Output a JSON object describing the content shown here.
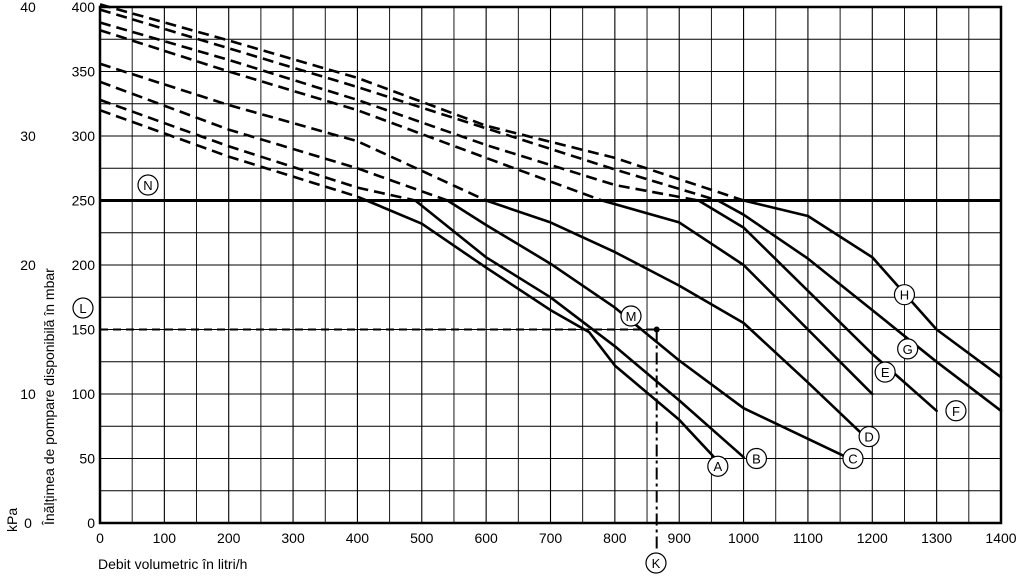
{
  "chart_data": {
    "type": "line",
    "xlabel": "Debit volumetric în litri/h",
    "ylabel": "Înălțimea de pompare disponibilă în mbar",
    "y2label": "kPa",
    "xlim": [
      0,
      1400
    ],
    "ylim": [
      0,
      400
    ],
    "y2lim": [
      0,
      40
    ],
    "x_ticks": [
      0,
      100,
      200,
      300,
      400,
      500,
      600,
      700,
      800,
      900,
      1000,
      1100,
      1200,
      1300,
      1400
    ],
    "y_ticks": [
      0,
      50,
      100,
      150,
      200,
      250,
      300,
      350,
      400
    ],
    "y2_ticks": [
      0,
      10,
      20,
      30,
      40
    ],
    "grid": true,
    "series": [
      {
        "name": "A",
        "x": [
          0,
          200,
          400,
          500,
          600,
          700,
          760,
          800,
          900,
          960
        ],
        "y": [
          320,
          284,
          253,
          232,
          198,
          165,
          148,
          122,
          80,
          48
        ]
      },
      {
        "name": "B",
        "x": [
          0,
          200,
          400,
          490,
          600,
          700,
          800,
          900,
          1000
        ],
        "y": [
          328,
          292,
          260,
          250,
          206,
          175,
          137,
          95,
          51
        ]
      },
      {
        "name": "C",
        "x": [
          0,
          200,
          400,
          540,
          600,
          700,
          800,
          900,
          1000,
          1160
        ],
        "y": [
          342,
          305,
          275,
          250,
          231,
          201,
          167,
          126,
          89,
          51
        ]
      },
      {
        "name": "D",
        "x": [
          0,
          200,
          400,
          600,
          700,
          800,
          900,
          1000,
          1100,
          1180
        ],
        "y": [
          356,
          324,
          296,
          250,
          233,
          210,
          184,
          155,
          109,
          71
        ]
      },
      {
        "name": "E",
        "x": [
          0,
          200,
          400,
          600,
          780,
          900,
          1000,
          1100,
          1200
        ],
        "y": [
          382,
          350,
          320,
          283,
          250,
          233,
          200,
          150,
          100
        ]
      },
      {
        "name": "F",
        "x": [
          0,
          200,
          400,
          600,
          800,
          930,
          1000,
          1100,
          1200,
          1300
        ],
        "y": [
          388,
          359,
          328,
          293,
          262,
          250,
          229,
          180,
          131,
          87
        ]
      },
      {
        "name": "G",
        "x": [
          0,
          200,
          400,
          600,
          800,
          960,
          1000,
          1100,
          1200,
          1300,
          1400
        ],
        "y": [
          398,
          368,
          338,
          306,
          274,
          250,
          239,
          205,
          165,
          125,
          87
        ]
      },
      {
        "name": "H",
        "x": [
          0,
          200,
          400,
          600,
          800,
          1000,
          1100,
          1200,
          1300,
          1400
        ],
        "y": [
          402,
          374,
          345,
          308,
          283,
          250,
          238,
          206,
          150,
          113
        ]
      }
    ],
    "reference": {
      "flow": 865,
      "head": 150
    }
  },
  "labels": {
    "K": "K",
    "L": "L",
    "M": "M",
    "N": "N"
  },
  "styles": {
    "line_color": "#000000",
    "grid_color": "#000000",
    "background": "#ffffff"
  }
}
